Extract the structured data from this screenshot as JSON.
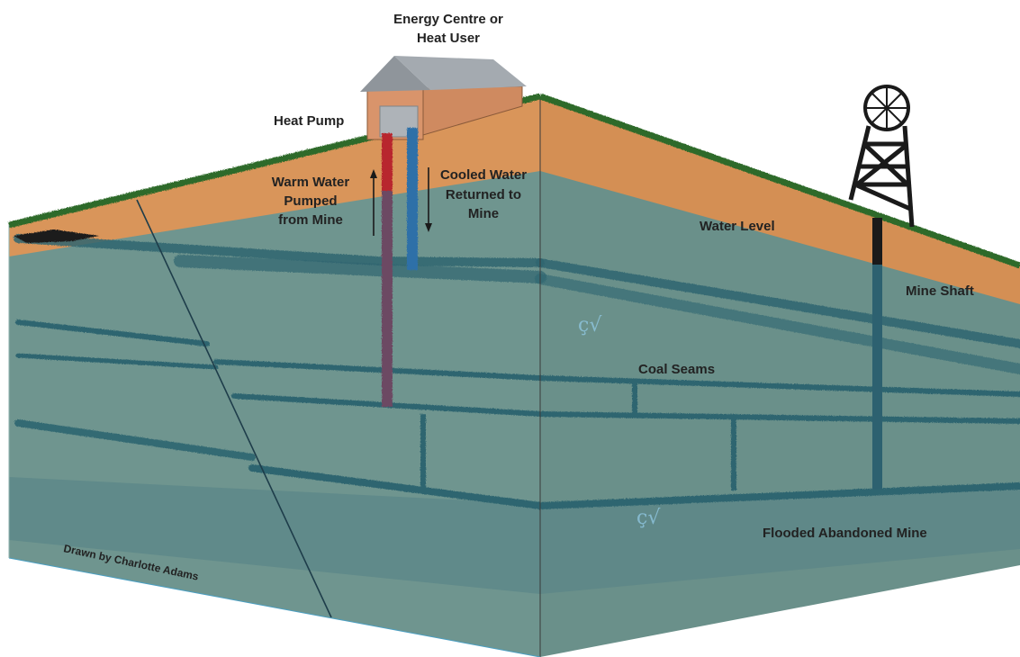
{
  "labels": {
    "energy_centre_line1": "Energy Centre or",
    "energy_centre_line2": "Heat User",
    "heat_pump": "Heat Pump",
    "warm_line1": "Warm Water",
    "warm_line2": "Pumped",
    "warm_line3": "from Mine",
    "cooled_line1": "Cooled Water",
    "cooled_line2": "Returned to",
    "cooled_line3": "Mine",
    "water_level": "Water Level",
    "mine_shaft": "Mine Shaft",
    "coal_seams": "Coal Seams",
    "flooded_mine": "Flooded Abandoned Mine",
    "credit": "Drawn by Charlotte Adams"
  },
  "colors": {
    "soil": "#d9955a",
    "water": "#6f958f",
    "water_dark": "#2f6570",
    "grass": "#2f6b2a",
    "warm_pipe": "#b8282e",
    "cool_pipe": "#2e6fa8",
    "return_pipe": "#6c4a63",
    "building_wall": "#d9946b",
    "building_roof": "#9aa0a6",
    "headframe": "#1a1a1a"
  }
}
